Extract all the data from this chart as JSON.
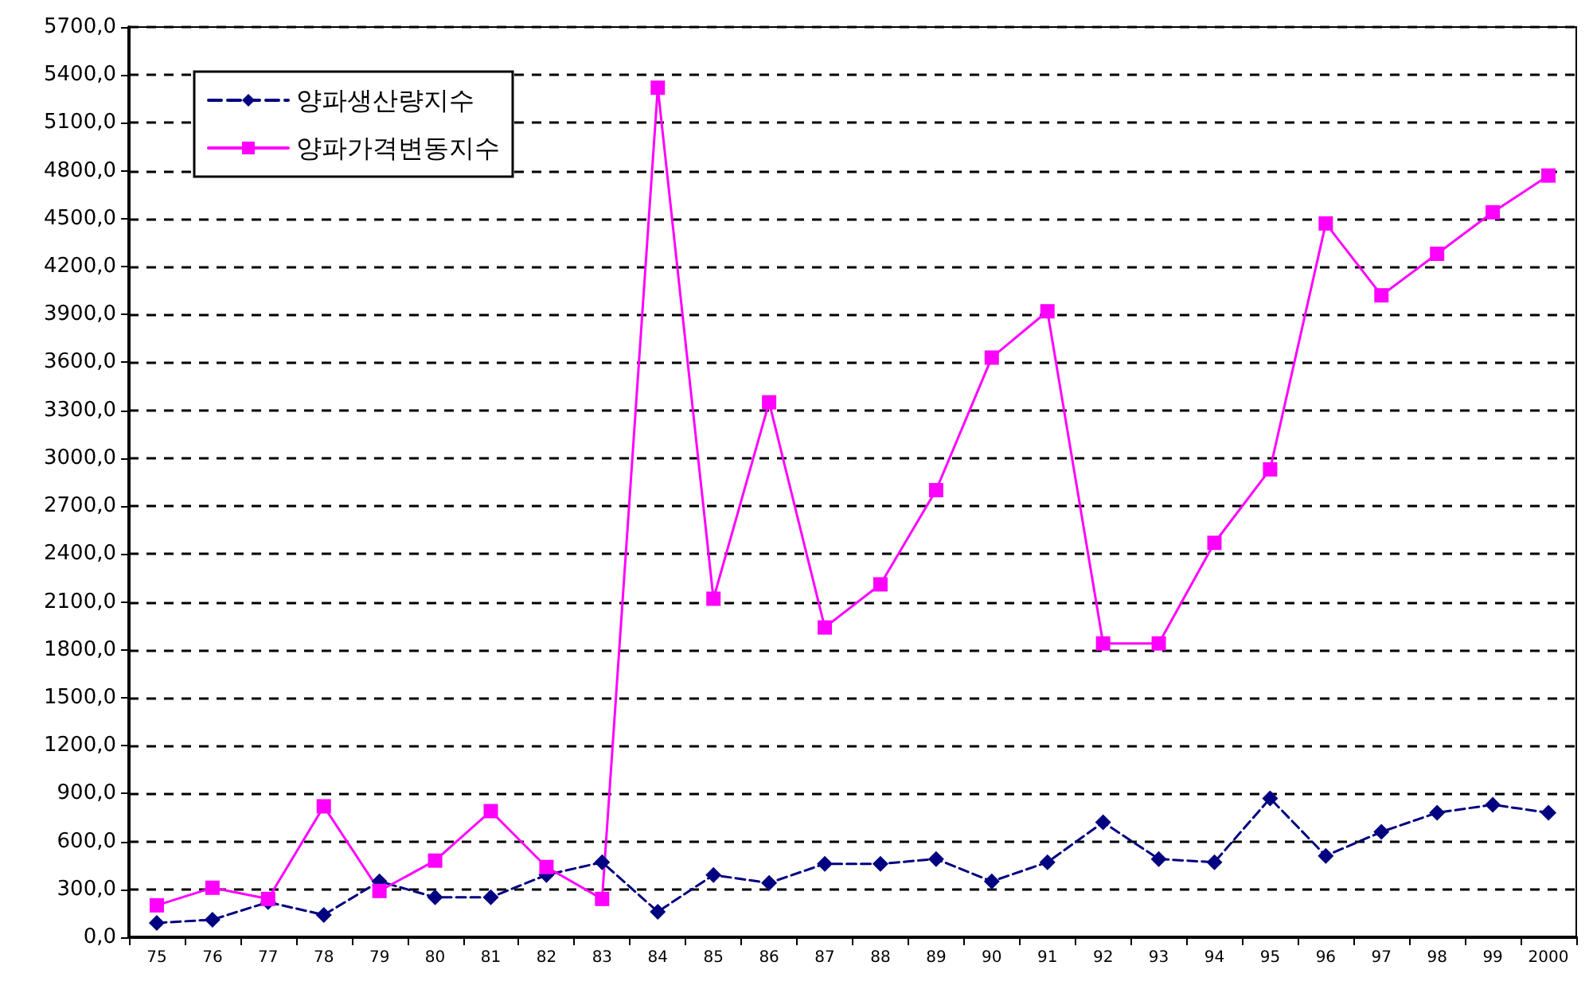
{
  "chart_data": {
    "type": "line",
    "categories": [
      "75",
      "76",
      "77",
      "78",
      "79",
      "80",
      "81",
      "82",
      "83",
      "84",
      "85",
      "86",
      "87",
      "88",
      "89",
      "90",
      "91",
      "92",
      "93",
      "94",
      "95",
      "96",
      "97",
      "98",
      "99",
      "2000"
    ],
    "series": [
      {
        "name": "양파생산량지수",
        "color": "#000080",
        "marker": "diamond",
        "line_style": "dashed",
        "values": [
          90,
          110,
          220,
          140,
          350,
          250,
          250,
          390,
          470,
          160,
          390,
          340,
          460,
          460,
          490,
          350,
          470,
          720,
          490,
          470,
          870,
          510,
          660,
          780,
          830,
          780
        ]
      },
      {
        "name": "양파가격변동지수",
        "color": "#ff00ff",
        "marker": "square",
        "line_style": "solid",
        "values": [
          200,
          310,
          240,
          820,
          290,
          480,
          790,
          440,
          240,
          5320,
          2120,
          3350,
          1940,
          2210,
          2800,
          3630,
          3920,
          1840,
          1840,
          2470,
          2930,
          4470,
          4020,
          4280,
          4540,
          4770
        ]
      }
    ],
    "ylim": [
      0,
      5700
    ],
    "yticks": [
      {
        "value": 0,
        "label": "0,0"
      },
      {
        "value": 300,
        "label": "300,0"
      },
      {
        "value": 600,
        "label": "600,0"
      },
      {
        "value": 900,
        "label": "900,0"
      },
      {
        "value": 1200,
        "label": "1200,0"
      },
      {
        "value": 1500,
        "label": "1500,0"
      },
      {
        "value": 1800,
        "label": "1800,0"
      },
      {
        "value": 2100,
        "label": "2100,0"
      },
      {
        "value": 2400,
        "label": "2400,0"
      },
      {
        "value": 2700,
        "label": "2700,0"
      },
      {
        "value": 3000,
        "label": "3000,0"
      },
      {
        "value": 3300,
        "label": "3300,0"
      },
      {
        "value": 3600,
        "label": "3600,0"
      },
      {
        "value": 3900,
        "label": "3900,0"
      },
      {
        "value": 4200,
        "label": "4200,0"
      },
      {
        "value": 4500,
        "label": "4500,0"
      },
      {
        "value": 4800,
        "label": "4800,0"
      },
      {
        "value": 5100,
        "label": "5100,0"
      },
      {
        "value": 5400,
        "label": "5400,0"
      },
      {
        "value": 5700,
        "label": "5700,0"
      }
    ],
    "grid": "y",
    "legend": "top left"
  }
}
